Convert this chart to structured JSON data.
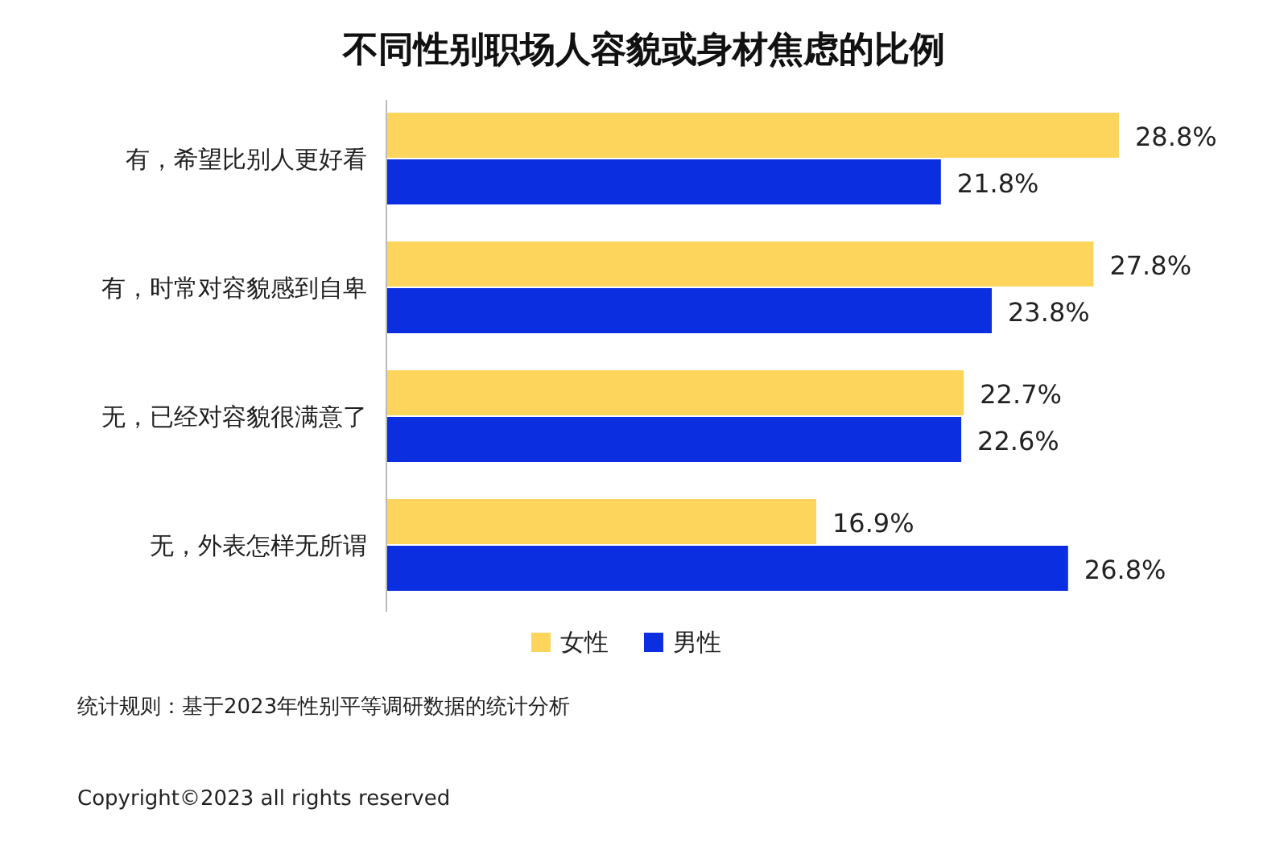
{
  "chart_data": {
    "type": "bar",
    "orientation": "horizontal",
    "title": "不同性别职场人容貌或身材焦虑的比例",
    "categories": [
      "有，希望比别人更好看",
      "有，时常对容貌感到自卑",
      "无，已经对容貌很满意了",
      "无，外表怎样无所谓"
    ],
    "series": [
      {
        "name": "女性",
        "color": "#fdd55c",
        "values": [
          28.8,
          27.8,
          22.7,
          16.9
        ],
        "value_labels": [
          "28.8%",
          "27.8%",
          "22.7%",
          "16.9%"
        ]
      },
      {
        "name": "男性",
        "color": "#0a2ee0",
        "values": [
          21.8,
          23.8,
          22.6,
          26.8
        ],
        "value_labels": [
          "21.8%",
          "23.8%",
          "22.6%",
          "26.8%"
        ]
      }
    ],
    "legend": "bottom",
    "annotations": [
      "统计规则：基于2023年性别平等调研数据的统计分析",
      "Copyright©2023 all rights reserved"
    ]
  }
}
